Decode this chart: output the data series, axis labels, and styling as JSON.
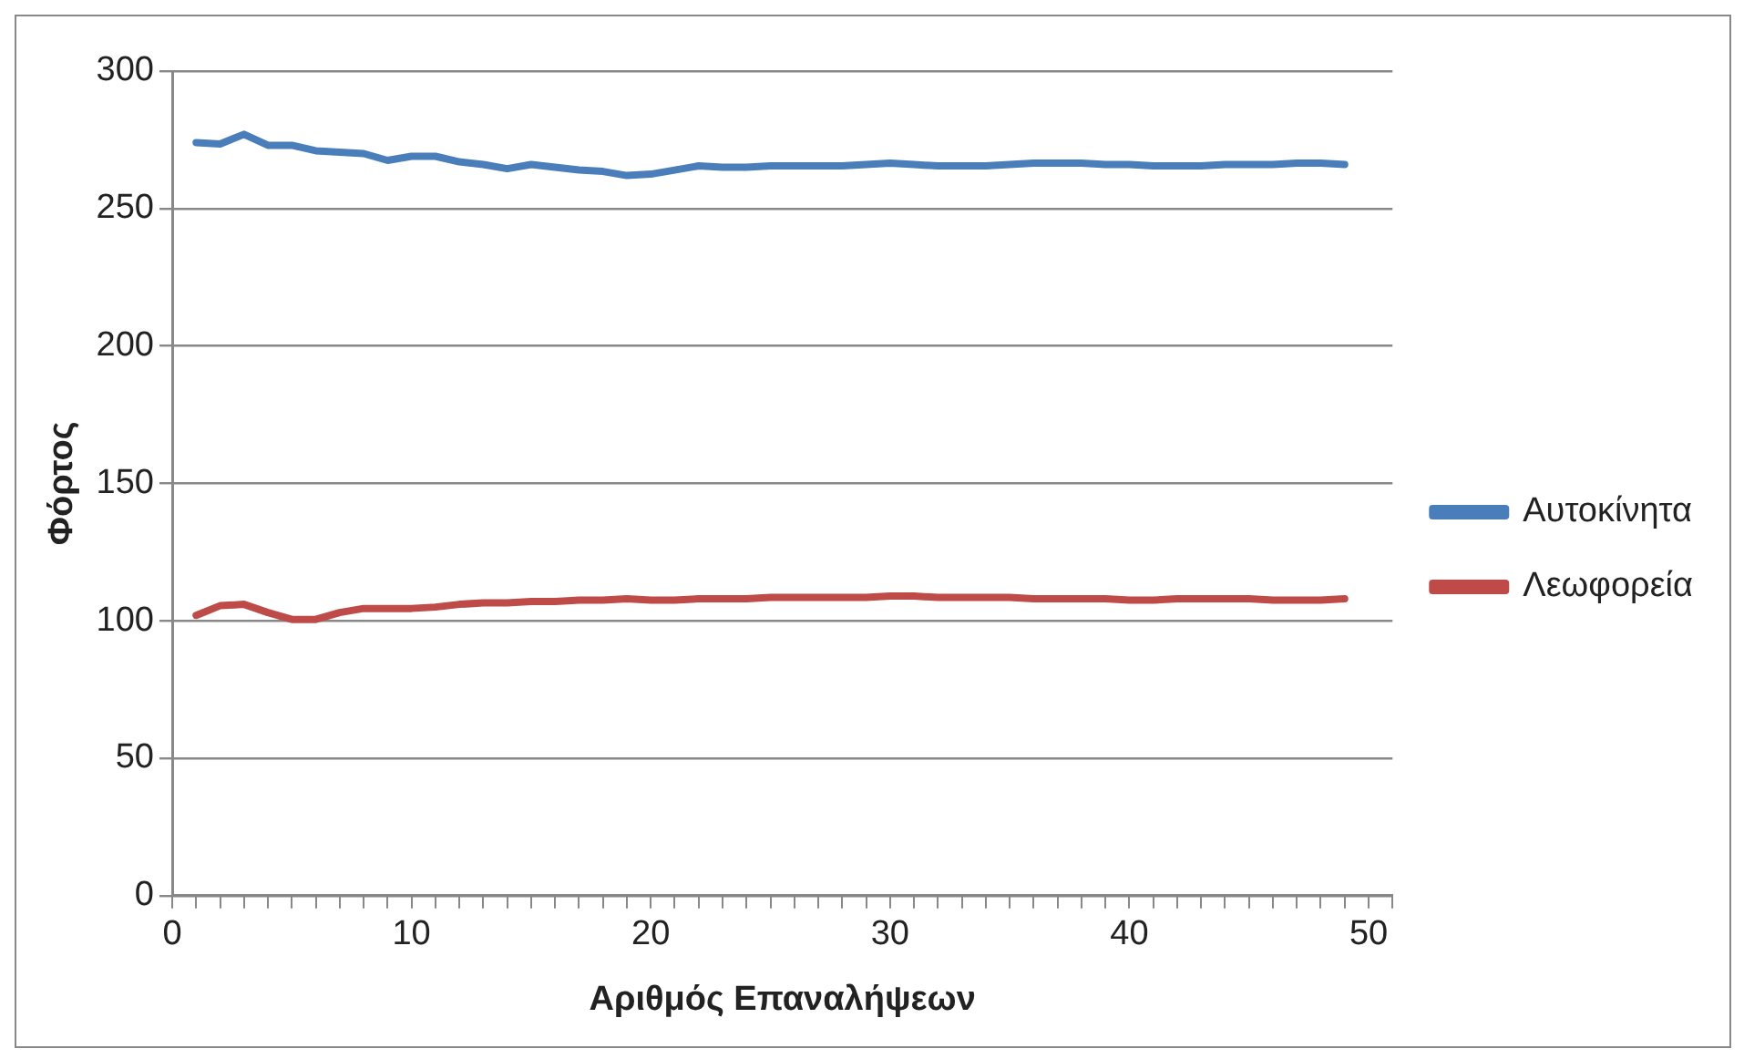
{
  "chart_data": {
    "type": "line",
    "xlabel": "Αριθμός Επαναλήψεων",
    "ylabel": "Φόρτος",
    "x": [
      1,
      2,
      3,
      4,
      5,
      6,
      7,
      8,
      9,
      10,
      11,
      12,
      13,
      14,
      15,
      16,
      17,
      18,
      19,
      20,
      21,
      22,
      23,
      24,
      25,
      26,
      27,
      28,
      29,
      30,
      31,
      32,
      33,
      34,
      35,
      36,
      37,
      38,
      39,
      40,
      41,
      42,
      43,
      44,
      45,
      46,
      47,
      48,
      49
    ],
    "series": [
      {
        "name": "Αυτοκίνητα",
        "color": "#4a7ebb",
        "values": [
          274,
          273.5,
          277,
          273,
          273,
          271,
          270.5,
          270,
          267.5,
          269,
          269,
          267,
          266,
          264.5,
          266,
          265,
          264,
          263.5,
          262,
          262.5,
          264,
          265.5,
          265,
          265,
          265.5,
          265.5,
          265.5,
          265.5,
          266,
          266.5,
          266,
          265.5,
          265.5,
          265.5,
          266,
          266.5,
          266.5,
          266.5,
          266,
          266,
          265.5,
          265.5,
          265.5,
          266,
          266,
          266,
          266.5,
          266.5,
          266
        ]
      },
      {
        "name": "Λεωφορεία",
        "color": "#be4b48",
        "values": [
          102,
          105.5,
          106,
          103,
          100.5,
          100.5,
          103,
          104.5,
          104.5,
          104.5,
          105,
          106,
          106.5,
          106.5,
          107,
          107,
          107.5,
          107.5,
          108,
          107.5,
          107.5,
          108,
          108,
          108,
          108.5,
          108.5,
          108.5,
          108.5,
          108.5,
          109,
          109,
          108.5,
          108.5,
          108.5,
          108.5,
          108,
          108,
          108,
          108,
          107.5,
          107.5,
          108,
          108,
          108,
          108,
          107.5,
          107.5,
          107.5,
          108
        ]
      }
    ],
    "xlim": [
      0,
      51
    ],
    "xticks": [
      0,
      {
        "value": 1,
        "label": null
      },
      {
        "value": 2,
        "label": null
      },
      {
        "value": 3,
        "label": null
      },
      {
        "value": 4,
        "label": null
      },
      {
        "value": 5,
        "label": null
      },
      {
        "value": 6,
        "label": null
      },
      {
        "value": 7,
        "label": null
      },
      {
        "value": 8,
        "label": null
      },
      {
        "value": 9,
        "label": null
      },
      10,
      {
        "value": 11,
        "label": null
      },
      {
        "value": 12,
        "label": null
      },
      {
        "value": 13,
        "label": null
      },
      {
        "value": 14,
        "label": null
      },
      {
        "value": 15,
        "label": null
      },
      {
        "value": 16,
        "label": null
      },
      {
        "value": 17,
        "label": null
      },
      {
        "value": 18,
        "label": null
      },
      {
        "value": 19,
        "label": null
      },
      20,
      {
        "value": 21,
        "label": null
      },
      {
        "value": 22,
        "label": null
      },
      {
        "value": 23,
        "label": null
      },
      {
        "value": 24,
        "label": null
      },
      {
        "value": 25,
        "label": null
      },
      {
        "value": 26,
        "label": null
      },
      {
        "value": 27,
        "label": null
      },
      {
        "value": 28,
        "label": null
      },
      {
        "value": 29,
        "label": null
      },
      30,
      {
        "value": 31,
        "label": null
      },
      {
        "value": 32,
        "label": null
      },
      {
        "value": 33,
        "label": null
      },
      {
        "value": 34,
        "label": null
      },
      {
        "value": 35,
        "label": null
      },
      {
        "value": 36,
        "label": null
      },
      {
        "value": 37,
        "label": null
      },
      {
        "value": 38,
        "label": null
      },
      {
        "value": 39,
        "label": null
      },
      40,
      {
        "value": 41,
        "label": null
      },
      {
        "value": 42,
        "label": null
      },
      {
        "value": 43,
        "label": null
      },
      {
        "value": 44,
        "label": null
      },
      {
        "value": 45,
        "label": null
      },
      {
        "value": 46,
        "label": null
      },
      {
        "value": 47,
        "label": null
      },
      {
        "value": 48,
        "label": null
      },
      {
        "value": 49,
        "label": null
      },
      50,
      {
        "value": 51,
        "label": null
      }
    ],
    "ylim": [
      0,
      300
    ],
    "yticks": [
      0,
      50,
      100,
      150,
      200,
      250,
      300
    ],
    "grid": "y",
    "legend": "right",
    "marker": "none",
    "line_style": "solid"
  }
}
